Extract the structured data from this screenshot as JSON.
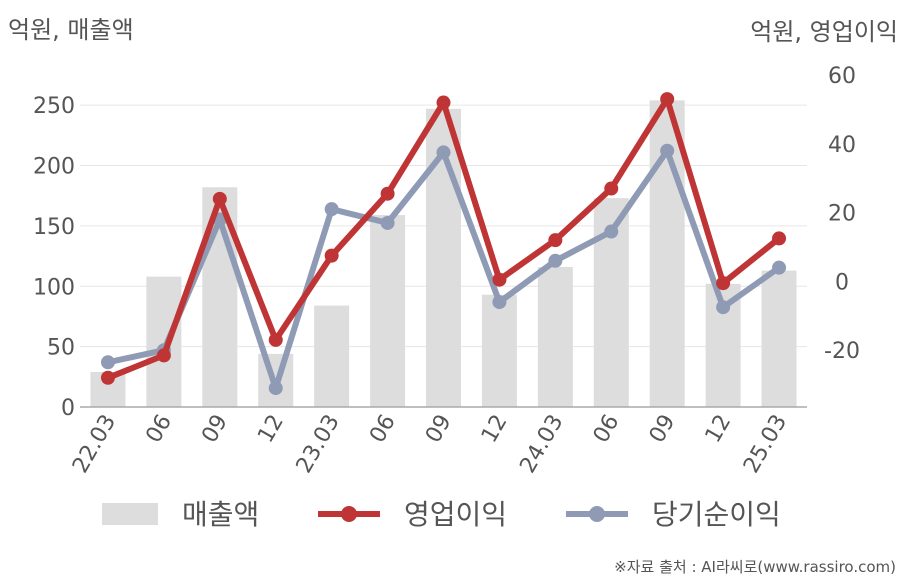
{
  "chart_data": {
    "type": "bar+line",
    "left_axis_label": "억원, 매출액",
    "right_axis_label": "억원, 영업이익",
    "categories": [
      "22.03",
      "06",
      "09",
      "12",
      "23.03",
      "06",
      "09",
      "12",
      "24.03",
      "06",
      "09",
      "12",
      "25.03"
    ],
    "left_axis": {
      "ylim": [
        0,
        275
      ],
      "ticks": [
        0,
        50,
        100,
        150,
        200,
        250
      ]
    },
    "right_axis": {
      "ylim": [
        -36.5,
        60
      ],
      "ticks": [
        -20,
        0,
        20,
        40,
        60
      ]
    },
    "series": [
      {
        "name": "매출액",
        "type": "bar",
        "axis": "left",
        "color": "#dddddd",
        "values": [
          29,
          108,
          182,
          44,
          84,
          159,
          247,
          93,
          116,
          173,
          254,
          102,
          113
        ]
      },
      {
        "name": "영업이익",
        "type": "line",
        "axis": "right",
        "color": "#bf3535",
        "values": [
          -28,
          -21.5,
          24,
          -17,
          7.5,
          25.5,
          52,
          0.5,
          12,
          27,
          53,
          -0.5,
          12.5
        ]
      },
      {
        "name": "당기순이익",
        "type": "line",
        "axis": "right",
        "color": "#8f9bb5",
        "values": [
          -23.5,
          -20,
          18,
          -31,
          21,
          17,
          37.5,
          -6,
          6,
          14.5,
          38,
          -7.5,
          4
        ]
      }
    ],
    "grid": true,
    "legend_position": "bottom"
  },
  "source_note": "※자료 출처 : AI라씨로(www.rassiro.com)"
}
